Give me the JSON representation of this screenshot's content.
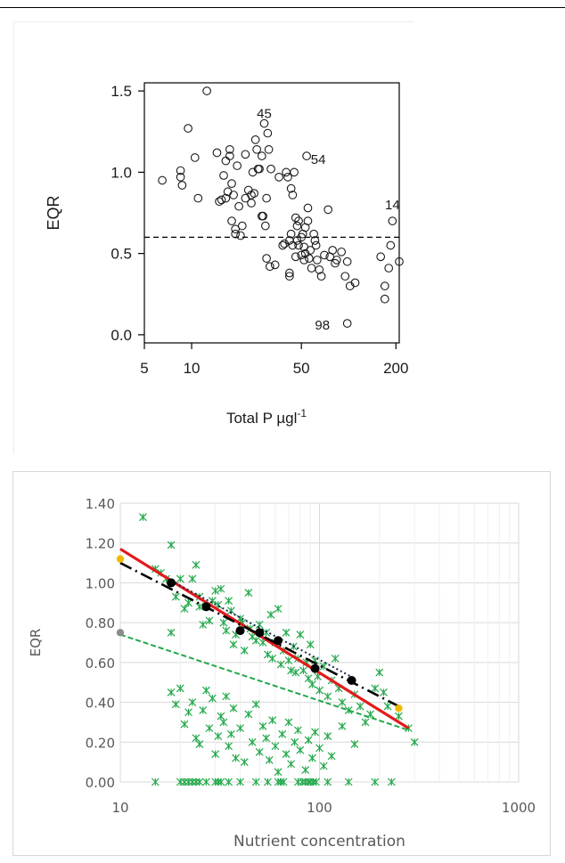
{
  "chart_data": [
    {
      "type": "scatter",
      "xlabel": "Total P µgl",
      "xlabel_superscript": "-1",
      "ylabel": "EQR",
      "x_scale": "log",
      "xlim": [
        5,
        210
      ],
      "ylim": [
        -0.05,
        1.55
      ],
      "x_ticks": [
        5,
        10,
        50,
        200
      ],
      "x_tick_labels": [
        "5",
        "10",
        "50",
        "200"
      ],
      "y_ticks": [
        0.0,
        0.5,
        1.0,
        1.5
      ],
      "y_tick_labels": [
        "0.0",
        "0.5",
        "1.0",
        "1.5"
      ],
      "grid": false,
      "marker": "open-circle",
      "reference_line": {
        "y": 0.6,
        "style": "dashed"
      },
      "annotations": [
        {
          "text": "45",
          "x": 29,
          "y": 1.36
        },
        {
          "text": "54",
          "x": 64,
          "y": 1.08
        },
        {
          "text": "14",
          "x": 190,
          "y": 0.8
        },
        {
          "text": "98",
          "x": 68,
          "y": 0.06
        }
      ],
      "points": [
        [
          6.5,
          0.95
        ],
        [
          8.5,
          0.97
        ],
        [
          8.5,
          1.01
        ],
        [
          8.7,
          0.92
        ],
        [
          9.5,
          1.27
        ],
        [
          10.5,
          1.09
        ],
        [
          11,
          0.84
        ],
        [
          12.5,
          1.5
        ],
        [
          14.5,
          1.12
        ],
        [
          15,
          0.82
        ],
        [
          15.5,
          0.83
        ],
        [
          16,
          0.98
        ],
        [
          16.5,
          0.84
        ],
        [
          16.5,
          1.07
        ],
        [
          17,
          0.88
        ],
        [
          17.5,
          1.14
        ],
        [
          17.5,
          1.1
        ],
        [
          18,
          0.93
        ],
        [
          18,
          0.7
        ],
        [
          18.5,
          0.86
        ],
        [
          19,
          0.62
        ],
        [
          19,
          0.65
        ],
        [
          19.5,
          1.04
        ],
        [
          20,
          0.79
        ],
        [
          20.5,
          0.61
        ],
        [
          21,
          0.67
        ],
        [
          22,
          0.84
        ],
        [
          22,
          1.11
        ],
        [
          23,
          0.89
        ],
        [
          24,
          0.86
        ],
        [
          24,
          0.81
        ],
        [
          24.5,
          1.0
        ],
        [
          25,
          0.87
        ],
        [
          25.5,
          1.2
        ],
        [
          26,
          1.14
        ],
        [
          26.5,
          1.02
        ],
        [
          27,
          1.02
        ],
        [
          28,
          1.1
        ],
        [
          28,
          0.73
        ],
        [
          28.5,
          0.73
        ],
        [
          29,
          1.3
        ],
        [
          29.5,
          0.67
        ],
        [
          30,
          0.84
        ],
        [
          30.5,
          1.24
        ],
        [
          31,
          1.14
        ],
        [
          32,
          1.02
        ],
        [
          30,
          0.47
        ],
        [
          31.5,
          0.42
        ],
        [
          34,
          0.43
        ],
        [
          36,
          0.97
        ],
        [
          38,
          0.55
        ],
        [
          39,
          0.56
        ],
        [
          40,
          1.0
        ],
        [
          41,
          0.97
        ],
        [
          42,
          0.38
        ],
        [
          42,
          0.58
        ],
        [
          42,
          0.36
        ],
        [
          43,
          0.9
        ],
        [
          43,
          0.62
        ],
        [
          44,
          0.86
        ],
        [
          44,
          0.55
        ],
        [
          45,
          1.0
        ],
        [
          46,
          0.72
        ],
        [
          46,
          0.48
        ],
        [
          47,
          0.67
        ],
        [
          47,
          0.58
        ],
        [
          48,
          0.7
        ],
        [
          48,
          0.55
        ],
        [
          50,
          0.49
        ],
        [
          50,
          0.6
        ],
        [
          51,
          0.62
        ],
        [
          52,
          0.54
        ],
        [
          52,
          0.46
        ],
        [
          53,
          0.66
        ],
        [
          53,
          0.5
        ],
        [
          54,
          1.1
        ],
        [
          55,
          0.78
        ],
        [
          55,
          0.7
        ],
        [
          56,
          0.47
        ],
        [
          57,
          0.52
        ],
        [
          58,
          0.41
        ],
        [
          60,
          0.62
        ],
        [
          61,
          0.58
        ],
        [
          62,
          0.55
        ],
        [
          63,
          0.46
        ],
        [
          65,
          0.4
        ],
        [
          67,
          0.36
        ],
        [
          70,
          0.49
        ],
        [
          74,
          0.77
        ],
        [
          76,
          0.48
        ],
        [
          79,
          0.52
        ],
        [
          82,
          0.44
        ],
        [
          84,
          0.46
        ],
        [
          90,
          0.51
        ],
        [
          95,
          0.36
        ],
        [
          98,
          0.45
        ],
        [
          102,
          0.3
        ],
        [
          110,
          0.32
        ],
        [
          160,
          0.48
        ],
        [
          170,
          0.22
        ],
        [
          170,
          0.3
        ],
        [
          180,
          0.41
        ],
        [
          185,
          0.55
        ],
        [
          190,
          0.7
        ],
        [
          210,
          0.45
        ],
        [
          98,
          0.07
        ]
      ]
    },
    {
      "type": "scatter",
      "xlabel": "Nutrient concentration",
      "ylabel": "EQR",
      "x_scale": "log",
      "xlim": [
        10,
        1000
      ],
      "ylim": [
        0,
        1.4
      ],
      "x_ticks": [
        10,
        100,
        1000
      ],
      "x_tick_labels": [
        "10",
        "100",
        "1000"
      ],
      "y_ticks": [
        0.0,
        0.2,
        0.4,
        0.6,
        0.8,
        1.0,
        1.2,
        1.4
      ],
      "y_tick_labels": [
        "0.00",
        "0.20",
        "0.40",
        "0.60",
        "0.80",
        "1.00",
        "1.20",
        "1.40"
      ],
      "grid": true,
      "colors": {
        "points": "#22a84a",
        "red_line": "#e31a1c",
        "dark_line": "#000000",
        "orange": "#f2b800",
        "gray": "#8c8c8c"
      },
      "series": [
        {
          "marker": "asterisk",
          "color": "#22a84a",
          "points": [
            [
              13,
              1.33
            ],
            [
              15,
              1.07
            ],
            [
              16,
              1.05
            ],
            [
              17,
              1.02
            ],
            [
              18,
              1.19
            ],
            [
              18,
              0.75
            ],
            [
              19,
              0.93
            ],
            [
              20,
              1.02
            ],
            [
              21,
              0.87
            ],
            [
              22,
              0.9
            ],
            [
              23,
              1.02
            ],
            [
              24,
              1.09
            ],
            [
              25,
              0.93
            ],
            [
              25,
              0.88
            ],
            [
              26,
              0.79
            ],
            [
              27,
              0.88
            ],
            [
              28,
              0.81
            ],
            [
              29,
              0.91
            ],
            [
              30,
              0.96
            ],
            [
              31,
              0.89
            ],
            [
              32,
              0.97
            ],
            [
              33,
              0.8
            ],
            [
              34,
              0.76
            ],
            [
              35,
              0.91
            ],
            [
              36,
              0.86
            ],
            [
              37,
              0.69
            ],
            [
              38,
              0.74
            ],
            [
              40,
              0.82
            ],
            [
              41,
              0.8
            ],
            [
              42,
              0.66
            ],
            [
              44,
              0.95
            ],
            [
              45,
              0.77
            ],
            [
              46,
              0.73
            ],
            [
              48,
              0.71
            ],
            [
              50,
              0.79
            ],
            [
              52,
              0.7
            ],
            [
              54,
              0.75
            ],
            [
              55,
              0.64
            ],
            [
              57,
              0.84
            ],
            [
              58,
              0.62
            ],
            [
              60,
              0.7
            ],
            [
              62,
              0.87
            ],
            [
              64,
              0.59
            ],
            [
              66,
              0.66
            ],
            [
              68,
              0.75
            ],
            [
              70,
              0.61
            ],
            [
              72,
              0.56
            ],
            [
              74,
              0.68
            ],
            [
              76,
              0.55
            ],
            [
              78,
              0.62
            ],
            [
              80,
              0.74
            ],
            [
              83,
              0.56
            ],
            [
              86,
              0.6
            ],
            [
              88,
              0.52
            ],
            [
              90,
              0.69
            ],
            [
              92,
              0.49
            ],
            [
              95,
              0.61
            ],
            [
              98,
              0.53
            ],
            [
              100,
              0.46
            ],
            [
              105,
              0.58
            ],
            [
              110,
              0.43
            ],
            [
              115,
              0.51
            ],
            [
              120,
              0.62
            ],
            [
              125,
              0.47
            ],
            [
              130,
              0.4
            ],
            [
              140,
              0.36
            ],
            [
              150,
              0.44
            ],
            [
              160,
              0.38
            ],
            [
              170,
              0.3
            ],
            [
              180,
              0.34
            ],
            [
              190,
              0.47
            ],
            [
              200,
              0.55
            ],
            [
              210,
              0.45
            ],
            [
              220,
              0.38
            ],
            [
              250,
              0.33
            ],
            [
              280,
              0.27
            ],
            [
              300,
              0.2
            ],
            [
              18,
              0.45
            ],
            [
              19,
              0.39
            ],
            [
              20,
              0.47
            ],
            [
              21,
              0.29
            ],
            [
              22,
              0.35
            ],
            [
              23,
              0.4
            ],
            [
              24,
              0.22
            ],
            [
              25,
              0.19
            ],
            [
              26,
              0.36
            ],
            [
              27,
              0.46
            ],
            [
              28,
              0.27
            ],
            [
              29,
              0.42
            ],
            [
              30,
              0.14
            ],
            [
              31,
              0.23
            ],
            [
              32,
              0.33
            ],
            [
              33,
              0.3
            ],
            [
              34,
              0.43
            ],
            [
              35,
              0.18
            ],
            [
              36,
              0.24
            ],
            [
              37,
              0.37
            ],
            [
              38,
              0.12
            ],
            [
              40,
              0.27
            ],
            [
              42,
              0.1
            ],
            [
              44,
              0.34
            ],
            [
              46,
              0.2
            ],
            [
              48,
              0.39
            ],
            [
              50,
              0.15
            ],
            [
              52,
              0.28
            ],
            [
              54,
              0.22
            ],
            [
              56,
              0.11
            ],
            [
              58,
              0.31
            ],
            [
              60,
              0.18
            ],
            [
              62,
              0.05
            ],
            [
              65,
              0.24
            ],
            [
              68,
              0.14
            ],
            [
              70,
              0.3
            ],
            [
              72,
              0.09
            ],
            [
              75,
              0.2
            ],
            [
              78,
              0.26
            ],
            [
              80,
              0.16
            ],
            [
              85,
              0.06
            ],
            [
              88,
              0.21
            ],
            [
              92,
              0.12
            ],
            [
              95,
              0.25
            ],
            [
              100,
              0.17
            ],
            [
              105,
              0.08
            ],
            [
              110,
              0.23
            ],
            [
              115,
              0.13
            ],
            [
              130,
              0.28
            ],
            [
              150,
              0.19
            ],
            [
              15,
              0.0
            ],
            [
              20,
              0.0
            ],
            [
              21,
              0.0
            ],
            [
              22,
              0.0
            ],
            [
              23,
              0.0
            ],
            [
              24,
              0.0
            ],
            [
              25,
              0.0
            ],
            [
              27,
              0.0
            ],
            [
              30,
              0.0
            ],
            [
              31,
              0.0
            ],
            [
              32,
              0.0
            ],
            [
              35,
              0.0
            ],
            [
              40,
              0.0
            ],
            [
              48,
              0.0
            ],
            [
              55,
              0.0
            ],
            [
              62,
              0.0
            ],
            [
              64,
              0.0
            ],
            [
              66,
              0.0
            ],
            [
              78,
              0.0
            ],
            [
              82,
              0.0
            ],
            [
              85,
              0.0
            ],
            [
              88,
              0.0
            ],
            [
              90,
              0.0
            ],
            [
              93,
              0.0
            ],
            [
              96,
              0.0
            ],
            [
              110,
              0.0
            ],
            [
              140,
              0.0
            ],
            [
              190,
              0.0
            ],
            [
              230,
              0.0
            ]
          ]
        },
        {
          "kind": "line",
          "style": "solid",
          "color": "#e31a1c",
          "points": [
            [
              10,
              1.17
            ],
            [
              280,
              0.27
            ]
          ]
        },
        {
          "kind": "line",
          "style": "long-dash",
          "color": "#000000",
          "points": [
            [
              10,
              1.1
            ],
            [
              250,
              0.38
            ]
          ]
        },
        {
          "kind": "line",
          "style": "dotted",
          "color": "#1a2a4a",
          "points": [
            [
              18,
              1.01
            ],
            [
              150,
              0.52
            ]
          ]
        },
        {
          "kind": "line",
          "style": "dashed",
          "color": "#22a84a",
          "points": [
            [
              10,
              0.74
            ],
            [
              280,
              0.26
            ]
          ]
        },
        {
          "kind": "marker",
          "marker": "filled-circle",
          "color": "#000000",
          "points": [
            [
              18,
              1.0
            ],
            [
              27,
              0.88
            ],
            [
              40,
              0.76
            ],
            [
              50,
              0.75
            ],
            [
              62,
              0.71
            ],
            [
              95,
              0.57
            ],
            [
              145,
              0.51
            ]
          ]
        },
        {
          "kind": "marker",
          "marker": "filled-circle",
          "color": "#f2b800",
          "points": [
            [
              10,
              1.12
            ],
            [
              250,
              0.37
            ]
          ]
        },
        {
          "kind": "marker",
          "marker": "filled-circle",
          "color": "#8c8c8c",
          "points": [
            [
              10,
              0.75
            ]
          ]
        }
      ]
    }
  ]
}
